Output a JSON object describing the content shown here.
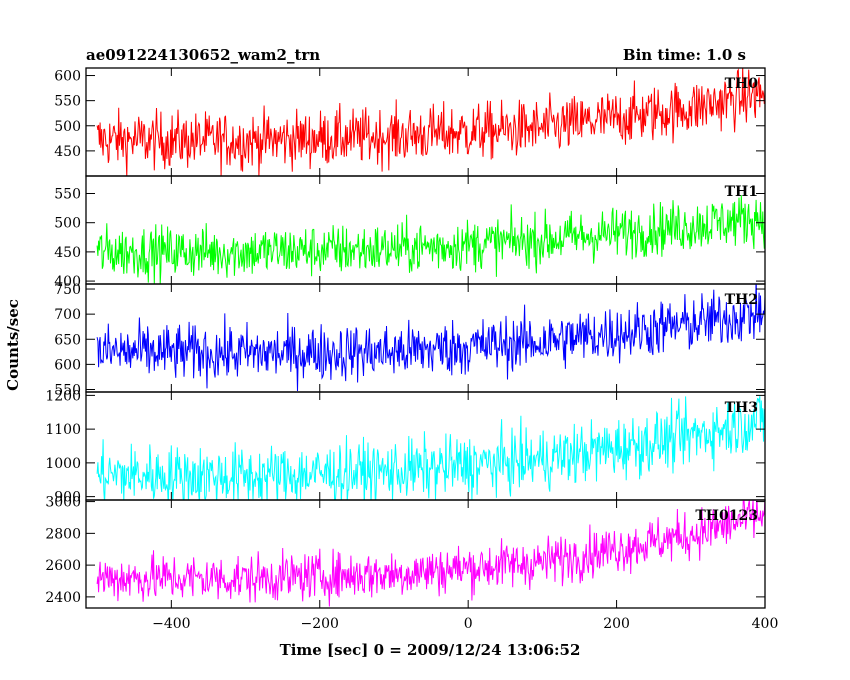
{
  "chart_data": {
    "type": "line",
    "title_left": "ae091224130652_wam2_trn",
    "title_right": "Bin time: 1.0 s",
    "xlabel": "Time [sec] 0 = 2009/12/24 13:06:52",
    "ylabel": "Counts/sec",
    "x_range": [
      -515,
      400
    ],
    "x_ticks": [
      -400,
      -200,
      0,
      200,
      400
    ],
    "x_tick_labels": [
      "−400",
      "−200",
      "0",
      "200",
      "400"
    ],
    "bin_time_s": 1.0,
    "grid": false,
    "panels": [
      {
        "name": "TH0",
        "color": "#ff0000",
        "ylim": [
          400,
          615
        ],
        "yticks": [
          450,
          500,
          550,
          600
        ],
        "trend": [
          [
            -500,
            472
          ],
          [
            -300,
            470
          ],
          [
            -100,
            480
          ],
          [
            100,
            495
          ],
          [
            300,
            535
          ],
          [
            400,
            565
          ]
        ],
        "noise_amplitude": 28
      },
      {
        "name": "TH1",
        "color": "#00ff00",
        "ylim": [
          395,
          580
        ],
        "yticks": [
          400,
          450,
          500,
          550
        ],
        "trend": [
          [
            -500,
            450
          ],
          [
            -300,
            450
          ],
          [
            -100,
            455
          ],
          [
            100,
            470
          ],
          [
            300,
            495
          ],
          [
            400,
            510
          ]
        ],
        "noise_amplitude": 22
      },
      {
        "name": "TH2",
        "color": "#0000ff",
        "ylim": [
          545,
          760
        ],
        "yticks": [
          550,
          600,
          650,
          700,
          750
        ],
        "trend": [
          [
            -500,
            625
          ],
          [
            -300,
            622
          ],
          [
            -100,
            625
          ],
          [
            100,
            645
          ],
          [
            300,
            680
          ],
          [
            400,
            705
          ]
        ],
        "noise_amplitude": 28
      },
      {
        "name": "TH3",
        "color": "#00ffff",
        "ylim": [
          890,
          1210
        ],
        "yticks": [
          900,
          1000,
          1100,
          1200
        ],
        "trend": [
          [
            -500,
            965
          ],
          [
            -300,
            960
          ],
          [
            -100,
            975
          ],
          [
            100,
            1010
          ],
          [
            300,
            1080
          ],
          [
            400,
            1130
          ]
        ],
        "noise_amplitude": 45
      },
      {
        "name": "TH0123",
        "color": "#ff00ff",
        "ylim": [
          2330,
          3010
        ],
        "yticks": [
          2400,
          2600,
          2800,
          3000
        ],
        "trend": [
          [
            -500,
            2520
          ],
          [
            -300,
            2515
          ],
          [
            -100,
            2545
          ],
          [
            100,
            2620
          ],
          [
            300,
            2790
          ],
          [
            400,
            2920
          ]
        ],
        "noise_amplitude": 75
      }
    ]
  }
}
